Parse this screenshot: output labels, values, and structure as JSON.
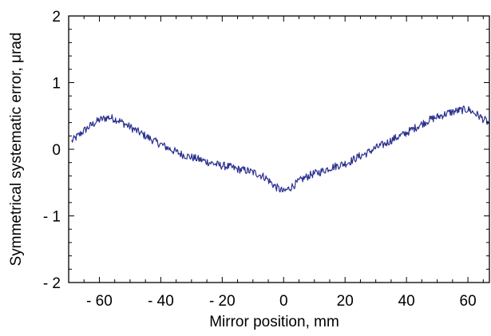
{
  "chart_data": {
    "type": "line",
    "title": "",
    "xlabel": "Mirror position, mm",
    "ylabel": "Symmetrical systematic error, μrad",
    "xlim": [
      -70,
      67
    ],
    "ylim": [
      -2,
      2
    ],
    "x_ticks": [
      -60,
      -40,
      -20,
      0,
      20,
      40,
      60
    ],
    "x_tick_labels": [
      "- 60",
      "- 40",
      "- 20",
      "0",
      "20",
      "40",
      "60"
    ],
    "y_ticks": [
      -2,
      -1,
      0,
      1,
      2
    ],
    "y_tick_labels": [
      "- 2",
      "- 1",
      "0",
      "1",
      "2"
    ],
    "grid": false,
    "legend": "none",
    "series": [
      {
        "color": "#2a2f8f",
        "noise_amplitude": 0.06,
        "x": [
          -69,
          -66,
          -63,
          -60,
          -57,
          -54,
          -51,
          -48,
          -45,
          -42,
          -39,
          -36,
          -33,
          -30,
          -27,
          -24,
          -21,
          -18,
          -15,
          -12,
          -9,
          -6,
          -3,
          0,
          3,
          6,
          9,
          12,
          15,
          18,
          21,
          24,
          27,
          30,
          33,
          36,
          39,
          42,
          45,
          48,
          51,
          54,
          57,
          60,
          63,
          66,
          67
        ],
        "y": [
          0.12,
          0.24,
          0.35,
          0.44,
          0.48,
          0.44,
          0.36,
          0.28,
          0.2,
          0.12,
          0.05,
          -0.02,
          -0.08,
          -0.12,
          -0.16,
          -0.2,
          -0.24,
          -0.26,
          -0.3,
          -0.32,
          -0.36,
          -0.42,
          -0.55,
          -0.64,
          -0.55,
          -0.45,
          -0.38,
          -0.34,
          -0.28,
          -0.24,
          -0.2,
          -0.12,
          -0.06,
          0.02,
          0.08,
          0.16,
          0.22,
          0.3,
          0.38,
          0.45,
          0.5,
          0.55,
          0.58,
          0.6,
          0.52,
          0.42,
          0.38
        ]
      }
    ]
  }
}
